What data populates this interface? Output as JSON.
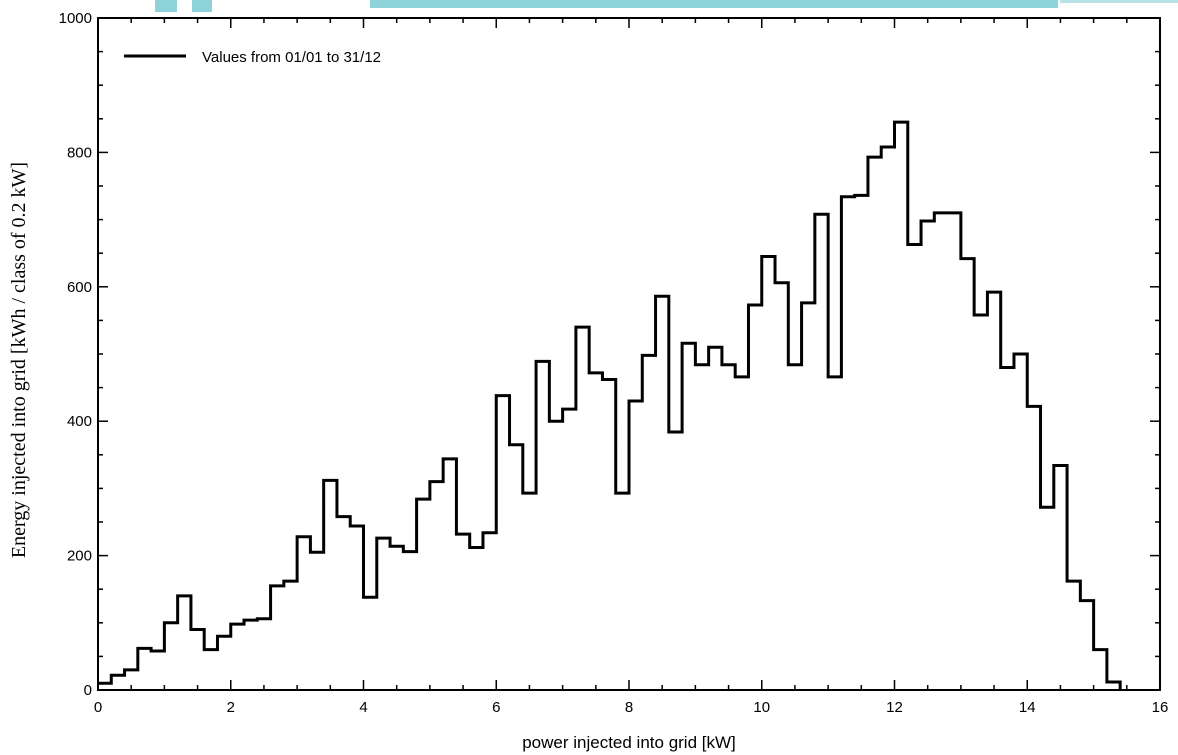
{
  "chart_data": {
    "type": "line",
    "style": "step-histogram",
    "title": "",
    "xlabel": "power injected into grid [kW]",
    "ylabel": "Energy injected into grid [kWh / class of 0.2 kW]",
    "xlim": [
      0,
      16
    ],
    "ylim": [
      0,
      1000
    ],
    "xticks": [
      0,
      2,
      4,
      6,
      8,
      10,
      12,
      14,
      16
    ],
    "yticks": [
      0,
      200,
      400,
      600,
      800,
      1000
    ],
    "grid": false,
    "legend_position": "top-left",
    "bin_width": 0.2,
    "series": [
      {
        "name": "Values from 01/01 to 31/12",
        "color": "#000000",
        "bin_starts": [
          0.0,
          0.2,
          0.4,
          0.6,
          0.8,
          1.0,
          1.2,
          1.4,
          1.6,
          1.8,
          2.0,
          2.2,
          2.4,
          2.6,
          2.8,
          3.0,
          3.2,
          3.4,
          3.6,
          3.8,
          4.0,
          4.2,
          4.4,
          4.6,
          4.8,
          5.0,
          5.2,
          5.4,
          5.6,
          5.8,
          6.0,
          6.2,
          6.4,
          6.6,
          6.8,
          7.0,
          7.2,
          7.4,
          7.6,
          7.8,
          8.0,
          8.2,
          8.4,
          8.6,
          8.8,
          9.0,
          9.2,
          9.4,
          9.6,
          9.8,
          10.0,
          10.2,
          10.4,
          10.6,
          10.8,
          11.0,
          11.2,
          11.4,
          11.6,
          11.8,
          12.0,
          12.2,
          12.4,
          12.6,
          12.8,
          13.0,
          13.2,
          13.4,
          13.6,
          13.8,
          14.0,
          14.2,
          14.4,
          14.6,
          14.8,
          15.0,
          15.2
        ],
        "values": [
          10,
          22,
          30,
          62,
          58,
          100,
          140,
          90,
          60,
          80,
          98,
          104,
          106,
          155,
          162,
          228,
          205,
          312,
          258,
          244,
          138,
          226,
          214,
          206,
          284,
          310,
          344,
          232,
          212,
          234,
          438,
          365,
          293,
          489,
          400,
          418,
          540,
          472,
          462,
          293,
          430,
          498,
          586,
          384,
          516,
          484,
          510,
          484,
          466,
          573,
          645,
          606,
          484,
          576,
          708,
          466,
          734,
          736,
          793,
          808,
          845,
          663,
          698,
          710,
          710,
          642,
          558,
          592,
          480,
          500,
          422,
          272,
          334,
          162,
          133,
          60,
          12
        ]
      }
    ]
  }
}
